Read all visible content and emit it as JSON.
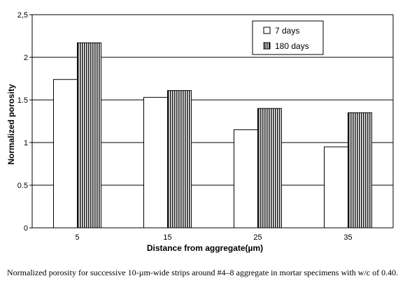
{
  "chart_data": {
    "type": "bar",
    "categories": [
      "5",
      "15",
      "25",
      "35"
    ],
    "series": [
      {
        "name": "7 days",
        "values": [
          1.74,
          1.53,
          1.15,
          0.95
        ],
        "fill": "#ffffff"
      },
      {
        "name": "180 days",
        "values": [
          2.17,
          1.61,
          1.4,
          1.35
        ],
        "fill": "#8a8a8a",
        "pattern": "vertical-stripes"
      }
    ],
    "xlabel": "Distance from aggregate(µm)",
    "ylabel": "Normalized porosity",
    "ylim": [
      0,
      2.5
    ],
    "yticks": [
      "0",
      "0.5",
      "1",
      "1.5",
      "2",
      "2,5"
    ],
    "grid": true,
    "legend_position": "top-right"
  },
  "caption": "Normalized porosity for successive 10-µm-wide strips around #4–8 aggregate in mortar specimens with w/c of 0.40."
}
